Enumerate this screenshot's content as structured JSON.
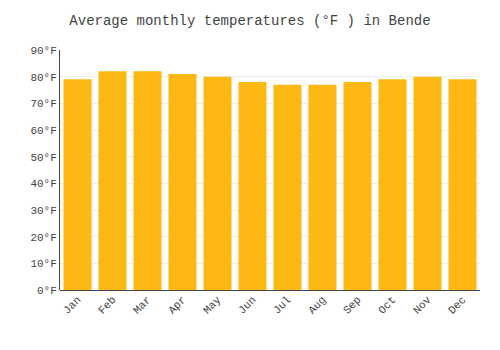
{
  "chart_data": {
    "type": "bar",
    "title": "Average monthly temperatures (°F ) in Bende",
    "categories": [
      "Jan",
      "Feb",
      "Mar",
      "Apr",
      "May",
      "Jun",
      "Jul",
      "Aug",
      "Sep",
      "Oct",
      "Nov",
      "Dec"
    ],
    "values": [
      79,
      82,
      82,
      81,
      80,
      78,
      77,
      77,
      78,
      79,
      80,
      79
    ],
    "color": "#FDB813",
    "ylim": [
      0,
      90
    ],
    "yticks": [
      {
        "value": 0,
        "label": "0°F"
      },
      {
        "value": 10,
        "label": "10°F"
      },
      {
        "value": 20,
        "label": "20°F"
      },
      {
        "value": 30,
        "label": "30°F"
      },
      {
        "value": 40,
        "label": "40°F"
      },
      {
        "value": 50,
        "label": "50°F"
      },
      {
        "value": 60,
        "label": "60°F"
      },
      {
        "value": 70,
        "label": "70°F"
      },
      {
        "value": 80,
        "label": "80°F"
      },
      {
        "value": 90,
        "label": "90°F"
      }
    ],
    "grid": true
  }
}
